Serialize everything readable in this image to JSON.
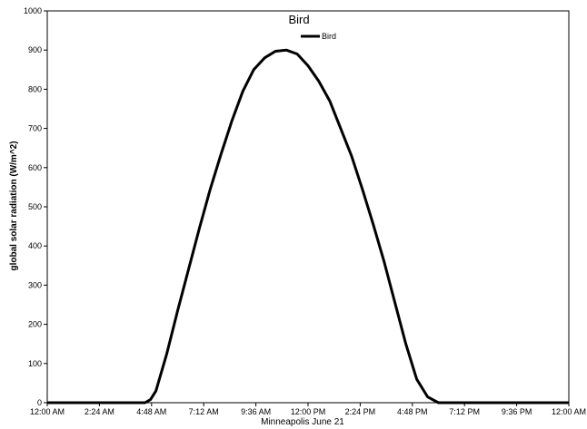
{
  "chart_data": {
    "type": "line",
    "title": "Bird",
    "xlabel": "Minneapolis  June 21",
    "ylabel": "global solar radiation (W/m^2)",
    "ylim": [
      0,
      1000
    ],
    "y_ticks": [
      0,
      100,
      200,
      300,
      400,
      500,
      600,
      700,
      800,
      900,
      1000
    ],
    "xlim_hours": [
      0,
      24
    ],
    "x_ticks": [
      {
        "hour": 0,
        "label": "12:00 AM"
      },
      {
        "hour": 2.4,
        "label": "2:24 AM"
      },
      {
        "hour": 4.8,
        "label": "4:48 AM"
      },
      {
        "hour": 7.2,
        "label": "7:12 AM"
      },
      {
        "hour": 9.6,
        "label": "9:36 AM"
      },
      {
        "hour": 12,
        "label": "12:00 PM"
      },
      {
        "hour": 14.4,
        "label": "2:24 PM"
      },
      {
        "hour": 16.8,
        "label": "4:48 PM"
      },
      {
        "hour": 19.2,
        "label": "7:12 PM"
      },
      {
        "hour": 21.6,
        "label": "9:36 PM"
      },
      {
        "hour": 24,
        "label": "12:00 AM"
      }
    ],
    "legend": {
      "position": "top-center"
    },
    "series": [
      {
        "name": "Bird",
        "color": "#000000",
        "x_hours": [
          0,
          4.5,
          4.75,
          5.0,
          5.5,
          6.0,
          6.5,
          7.0,
          7.5,
          8.0,
          8.5,
          9.0,
          9.5,
          10.0,
          10.5,
          11.0,
          11.5,
          12.0,
          12.5,
          13.0,
          13.5,
          14.0,
          14.5,
          15.0,
          15.5,
          16.0,
          16.5,
          17.0,
          17.5,
          18.0,
          18.5,
          19.0,
          19.5,
          19.75,
          20.0,
          24
        ],
        "values": [
          0,
          0,
          8,
          30,
          125,
          235,
          340,
          445,
          545,
          635,
          720,
          795,
          850,
          880,
          897,
          900,
          890,
          860,
          820,
          770,
          700,
          630,
          545,
          455,
          360,
          255,
          150,
          60,
          15,
          0,
          0,
          0,
          0,
          0,
          0,
          0
        ]
      }
    ]
  }
}
